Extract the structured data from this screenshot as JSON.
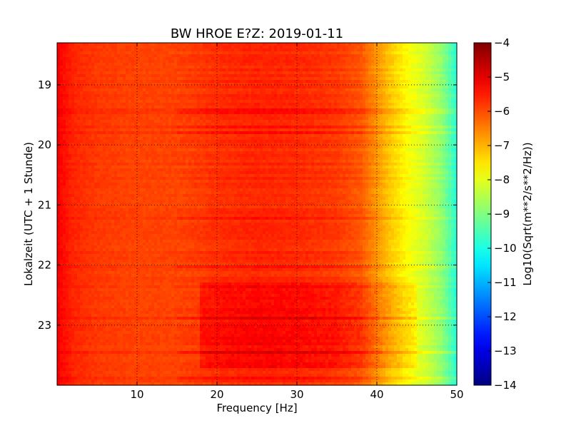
{
  "chart_data": {
    "type": "heatmap",
    "title": "BW HROE E?Z: 2019-01-11",
    "xlabel": "Frequency [Hz]",
    "ylabel": "Lokalzeit (UTC + 1 Stunde)",
    "colorbar_label": "Log10(Sqrt(m**2/s**2/Hz))",
    "xlim": [
      0,
      50
    ],
    "ylim": [
      18.3,
      24.0
    ],
    "x_ticks": [
      10,
      20,
      30,
      40,
      50
    ],
    "y_ticks": [
      19,
      20,
      21,
      22,
      23
    ],
    "clim": [
      -14,
      -4
    ],
    "colorbar_ticks": [
      -4,
      -5,
      -6,
      -7,
      -8,
      -9,
      -10,
      -11,
      -12,
      -13,
      -14
    ],
    "colormap": "jet",
    "grid": true,
    "grid_style": "dotted",
    "psd_profile": {
      "frequency_hz": [
        0,
        0.5,
        2,
        5,
        10,
        15,
        18,
        20,
        25,
        30,
        35,
        38,
        40,
        42,
        44,
        46,
        48,
        49.5,
        50
      ],
      "log10_amplitude": [
        -5.1,
        -5.3,
        -5.6,
        -5.8,
        -5.9,
        -5.9,
        -5.8,
        -5.7,
        -5.6,
        -5.65,
        -5.8,
        -6.1,
        -6.7,
        -7.3,
        -7.8,
        -8.2,
        -8.8,
        -9.6,
        -9.9
      ]
    },
    "elevated_noise_period": {
      "start_hour": 22.3,
      "end_hour": 23.7,
      "frequency_range_hz": [
        18,
        45
      ]
    }
  }
}
